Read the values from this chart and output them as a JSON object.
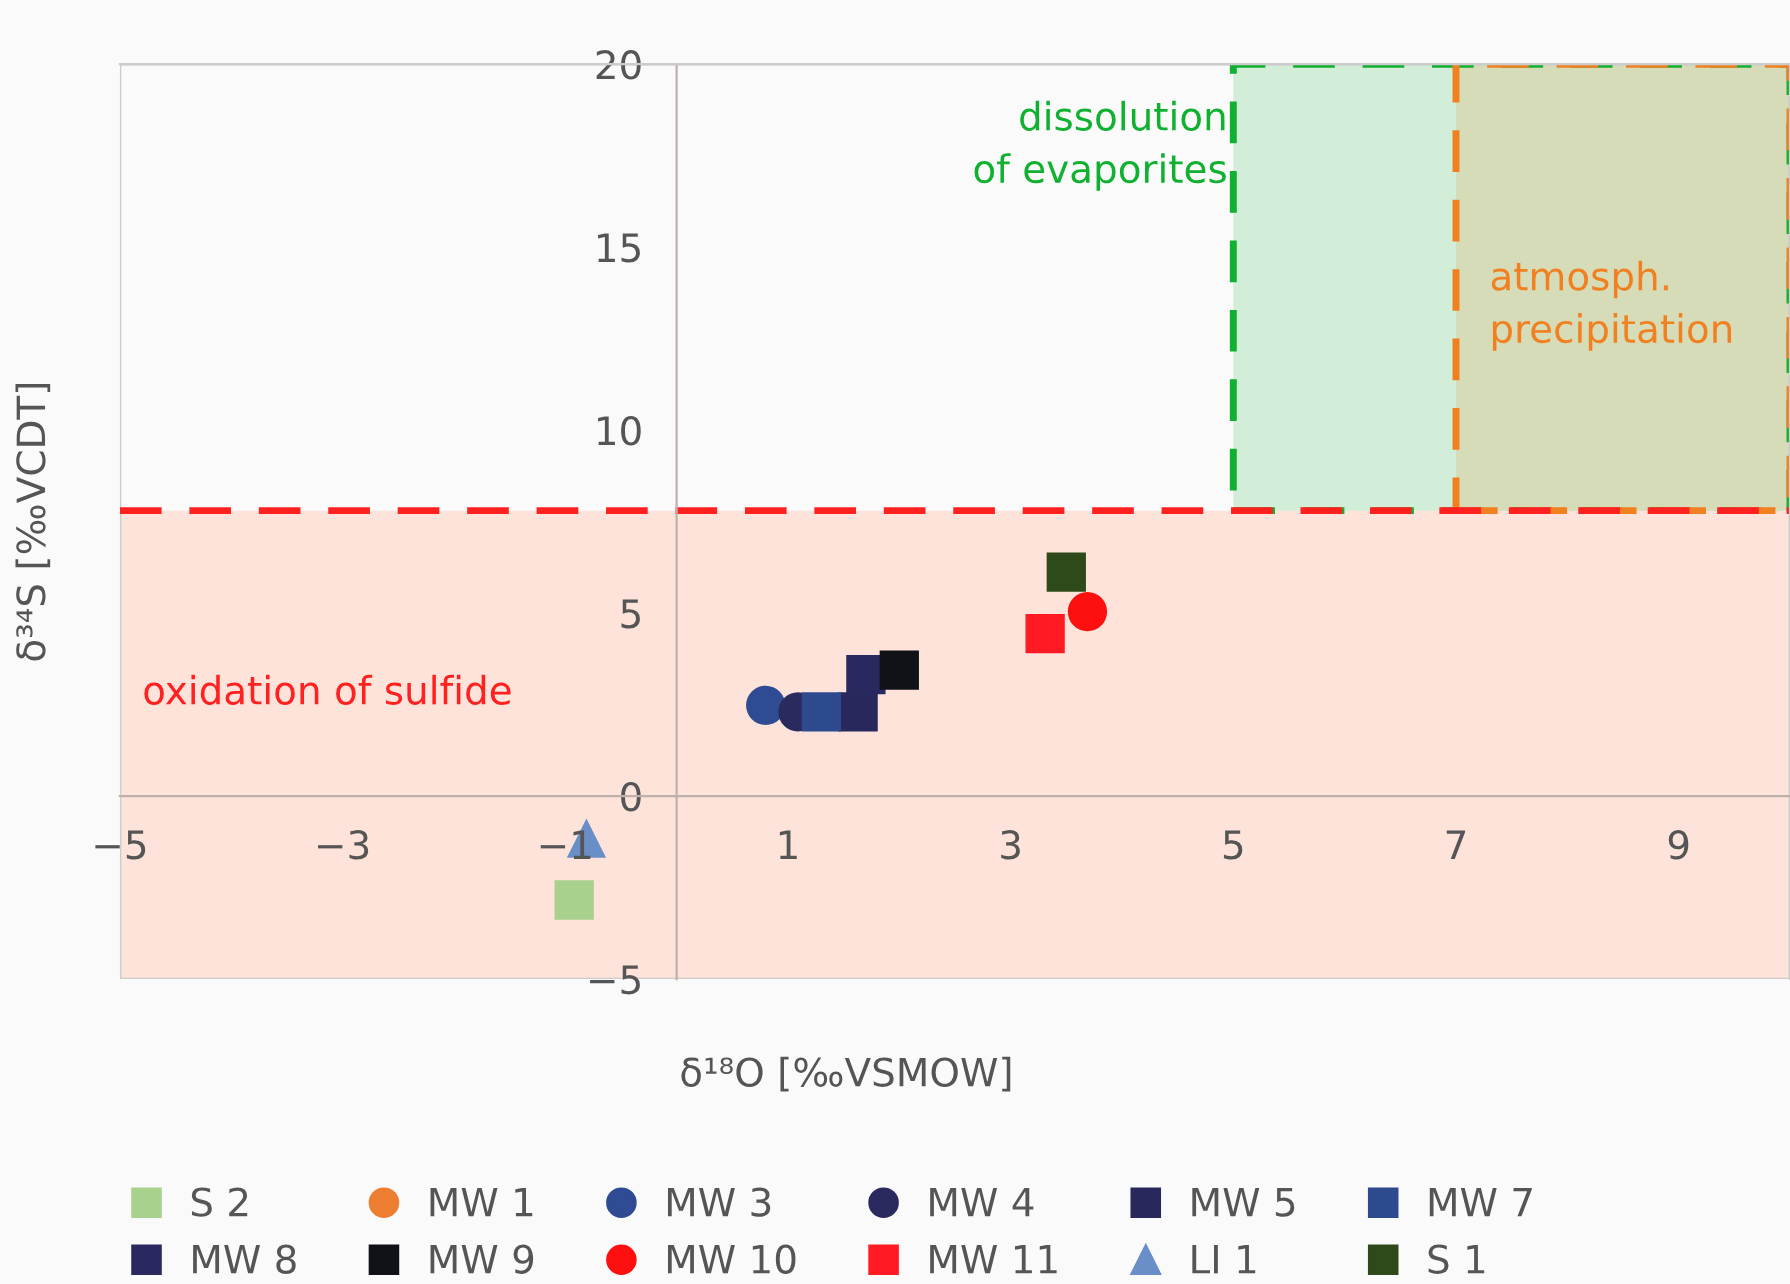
{
  "chart_data": {
    "type": "scatter",
    "xlabel": "δ¹⁸O [‰VSMOW]",
    "ylabel": "δ³⁴S [‰VCDT]",
    "xlim": [
      -5,
      10
    ],
    "ylim": [
      -5,
      20
    ],
    "xticks": [
      {
        "value": -5,
        "label": "−5"
      },
      {
        "value": -3,
        "label": "−3"
      },
      {
        "value": -1,
        "label": "−1"
      },
      1,
      3,
      5,
      7,
      9
    ],
    "yticks": [
      {
        "value": -5,
        "label": "−5"
      },
      0,
      5,
      10,
      15,
      20
    ],
    "grid": false,
    "legend": "bottom",
    "series": [
      {
        "name": "S 2",
        "color": "#a9d18e",
        "marker": "square",
        "x": [
          -0.92
        ],
        "values": [
          -2.84
        ]
      },
      {
        "name": "MW 1",
        "color": "#ed7d31",
        "marker": "circle",
        "x": [
          null
        ],
        "values": [
          null
        ]
      },
      {
        "name": "MW 3",
        "color": "#2f4b93",
        "marker": "circle",
        "x": [
          0.8
        ],
        "values": [
          2.48
        ]
      },
      {
        "name": "MW 4",
        "color": "#2a2a5e",
        "marker": "circle",
        "x": [
          1.09
        ],
        "values": [
          2.3
        ]
      },
      {
        "name": "MW 5",
        "color": "#28285c",
        "marker": "square",
        "x": [
          1.63
        ],
        "values": [
          2.3
        ]
      },
      {
        "name": "MW 7",
        "color": "#2e4a8f",
        "marker": "square",
        "x": [
          1.3
        ],
        "values": [
          2.3
        ]
      },
      {
        "name": "MW 8",
        "color": "#29295f",
        "marker": "square",
        "x": [
          1.7
        ],
        "values": [
          3.32
        ]
      },
      {
        "name": "MW 9",
        "color": "#111118",
        "marker": "square",
        "x": [
          2.0
        ],
        "values": [
          3.44
        ]
      },
      {
        "name": "MW 10",
        "color": "#ff1010",
        "marker": "circle",
        "x": [
          3.69
        ],
        "values": [
          5.04
        ]
      },
      {
        "name": "MW 11",
        "color": "#ff1a24",
        "marker": "square",
        "x": [
          3.31
        ],
        "values": [
          4.44
        ]
      },
      {
        "name": "LI 1",
        "color": "#6a8ec8",
        "marker": "triangle",
        "x": [
          -0.81
        ],
        "values": [
          -1.15
        ]
      },
      {
        "name": "S 1",
        "color": "#2e4a1a",
        "marker": "square",
        "x": [
          3.5
        ],
        "values": [
          6.12
        ]
      }
    ],
    "ref_lines": [
      {
        "axis": "y",
        "value": 7.8,
        "color": "#ff2020",
        "line_style": "dashed"
      }
    ],
    "bands": [
      {
        "axis": "y",
        "from": -5,
        "to": 7.8,
        "label": "oxidation of sulfide",
        "color": "#fde3d9"
      },
      {
        "axis": "x",
        "from": 5,
        "to": 10,
        "label": "dissolution\nof evaporites",
        "color": "#10b030"
      },
      {
        "axis": "x",
        "from": 7,
        "to": 10,
        "label": "atmosph.\nprecipitation",
        "color": "#f08020"
      }
    ]
  }
}
